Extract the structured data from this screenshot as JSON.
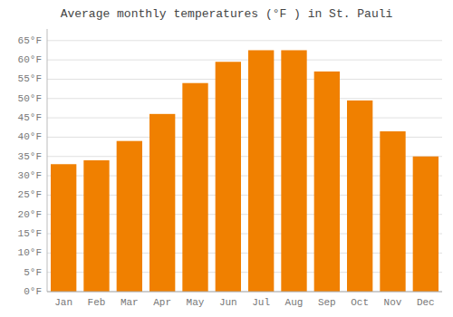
{
  "chart_data": {
    "type": "bar",
    "title": "Average monthly temperatures (°F ) in St. Pauli",
    "categories": [
      "Jan",
      "Feb",
      "Mar",
      "Apr",
      "May",
      "Jun",
      "Jul",
      "Aug",
      "Sep",
      "Oct",
      "Nov",
      "Dec"
    ],
    "values": [
      33,
      34,
      39,
      46,
      54,
      59.5,
      62.5,
      62.5,
      57,
      49.5,
      41.5,
      35
    ],
    "color": "#F08000",
    "ylim": [
      0,
      68
    ],
    "yticks": [
      {
        "value": 0,
        "label": "0°F"
      },
      {
        "value": 5,
        "label": "5°F"
      },
      {
        "value": 10,
        "label": "10°F"
      },
      {
        "value": 15,
        "label": "15°F"
      },
      {
        "value": 20,
        "label": "20°F"
      },
      {
        "value": 25,
        "label": "25°F"
      },
      {
        "value": 30,
        "label": "30°F"
      },
      {
        "value": 35,
        "label": "35°F"
      },
      {
        "value": 40,
        "label": "40°F"
      },
      {
        "value": 45,
        "label": "45°F"
      },
      {
        "value": 50,
        "label": "50°F"
      },
      {
        "value": 55,
        "label": "55°F"
      },
      {
        "value": 60,
        "label": "60°F"
      },
      {
        "value": 65,
        "label": "65°F"
      }
    ],
    "grid": true
  }
}
